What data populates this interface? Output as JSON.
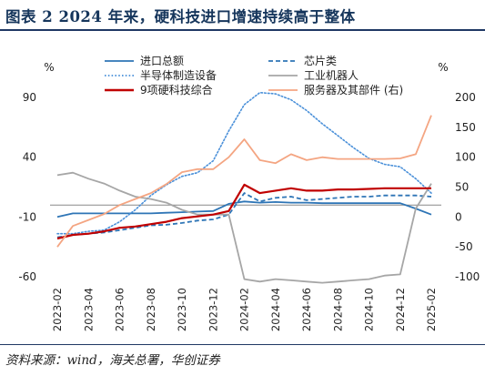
{
  "title": "图表 2   2024 年来，硬科技进口增速持续高于整体",
  "source": "资料来源：wind，海关总署，华创证券",
  "chart_data": {
    "type": "line",
    "title": "",
    "left_axis": {
      "unit": "%",
      "min": -60,
      "max": 90,
      "ticks": [
        90,
        40,
        -10,
        -60
      ]
    },
    "right_axis": {
      "unit": "%",
      "min": -100,
      "max": 200,
      "ticks": [
        200,
        150,
        100,
        50,
        0,
        -50,
        -100
      ]
    },
    "x": [
      "2023-02",
      "2023-03",
      "2023-04",
      "2023-05",
      "2023-06",
      "2023-07",
      "2023-08",
      "2023-09",
      "2023-10",
      "2023-11",
      "2023-12",
      "2024-01",
      "2024-02",
      "2024-03",
      "2024-04",
      "2024-05",
      "2024-06",
      "2024-07",
      "2024-08",
      "2024-09",
      "2024-10",
      "2024-11",
      "2024-12",
      "2025-01",
      "2025-02"
    ],
    "x_tick_labels": [
      "2023-02",
      "2023-04",
      "2023-06",
      "2023-08",
      "2023-10",
      "2023-12",
      "2024-02",
      "2024-04",
      "2024-06",
      "2024-08",
      "2024-10",
      "2024-12",
      "2025-02"
    ],
    "series": [
      {
        "name": "进口总额",
        "axis": "left",
        "color": "#2e75b6",
        "style": "solid",
        "values": [
          -10,
          -7,
          -7,
          -7,
          -7,
          -7,
          -7,
          -6.5,
          -6,
          -5.5,
          -5,
          1,
          3,
          2,
          2.5,
          2,
          2,
          1.5,
          1.5,
          1.5,
          1.5,
          1.5,
          1.5,
          -3,
          -8
        ]
      },
      {
        "name": "芯片类",
        "axis": "left",
        "color": "#2e75b6",
        "style": "dashed",
        "values": [
          -27,
          -25,
          -24,
          -23,
          -21,
          -19,
          -17,
          -16.5,
          -15,
          -13,
          -12,
          -8,
          10,
          3,
          6,
          7,
          4,
          5,
          6,
          7,
          7,
          8,
          8,
          8,
          7
        ]
      },
      {
        "name": "半导体制造设备",
        "axis": "left",
        "color": "#4a90d9",
        "style": "dotted",
        "values": [
          -24,
          -24,
          -22,
          -21,
          -14,
          -4,
          8,
          17,
          24,
          27,
          37,
          62,
          84,
          94,
          93,
          88,
          79,
          68,
          58,
          48,
          39,
          34,
          32,
          22,
          10
        ]
      },
      {
        "name": "工业机器人",
        "axis": "left",
        "color": "#a6a6a6",
        "style": "solid",
        "values": [
          25,
          27,
          22,
          18,
          12,
          7,
          5,
          2,
          -4,
          -8,
          -8,
          -8,
          -62,
          -64,
          -62,
          -63,
          -64,
          -65,
          -64,
          -63,
          -62,
          -59,
          -58,
          -3,
          18
        ]
      },
      {
        "name": "9项硬科技综合",
        "axis": "left",
        "color": "#c00000",
        "style": "solid",
        "values": [
          -28,
          -25,
          -24,
          -22,
          -19,
          -18,
          -16,
          -14,
          -11,
          -9.5,
          -8,
          -5,
          17,
          10,
          12,
          14,
          12,
          12,
          13,
          13,
          13.5,
          14,
          14,
          14,
          14
        ]
      },
      {
        "name": "服务器及其部件（右）",
        "axis": "right",
        "color": "#f4a582",
        "style": "solid",
        "values": [
          -50,
          -15,
          -5,
          5,
          20,
          30,
          40,
          55,
          75,
          80,
          80,
          100,
          130,
          95,
          90,
          105,
          95,
          100,
          97,
          97,
          97,
          97,
          98,
          105,
          170
        ]
      }
    ],
    "legend": [
      {
        "label": "进口总额",
        "series": 0
      },
      {
        "label": "芯片类",
        "series": 1
      },
      {
        "label": "半导体制造设备",
        "series": 2
      },
      {
        "label": "工业机器人",
        "series": 3
      },
      {
        "label": "9项硬科技综合",
        "series": 4
      },
      {
        "label": "服务器及其部件   (右)",
        "series": 5
      }
    ],
    "legend_position": "top",
    "grid": false
  }
}
